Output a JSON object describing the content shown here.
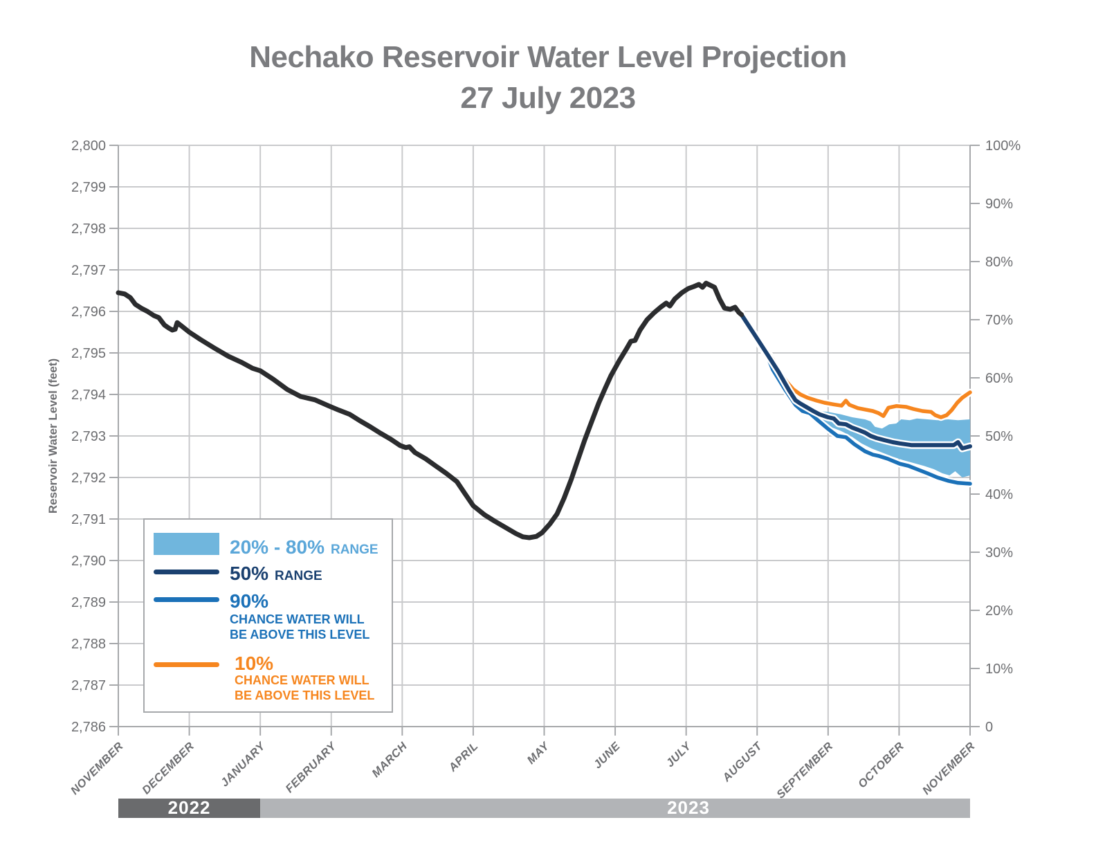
{
  "title": {
    "line1": "Nechako Reservoir Water Level Projection",
    "line2": "27 July 2023"
  },
  "y_axis": {
    "title": "Reservoir Water Level (feet)",
    "tick_labels": [
      "2,786",
      "2,787",
      "2,788",
      "2,789",
      "2,790",
      "2,791",
      "2,792",
      "2,793",
      "2,794",
      "2,795",
      "2,796",
      "2,797",
      "2,798",
      "2,799",
      "2,800"
    ]
  },
  "right_axis": {
    "tick_labels": [
      "0",
      "10%",
      "20%",
      "30%",
      "40%",
      "50%",
      "60%",
      "70%",
      "80%",
      "90%",
      "100%"
    ]
  },
  "x_axis": {
    "months": [
      "NOVEMBER",
      "DECEMBER",
      "JANUARY",
      "FEBRUARY",
      "MARCH",
      "APRIL",
      "MAY",
      "JUNE",
      "JULY",
      "AUGUST",
      "SEPTEMBER",
      "OCTOBER",
      "NOVEMBER"
    ]
  },
  "year_bar": {
    "left_label": "2022",
    "right_label": "2023"
  },
  "legend": {
    "band": {
      "big": "20% - 80%",
      "small": "RANGE"
    },
    "p50": {
      "big": "50%",
      "small": "RANGE"
    },
    "p90": {
      "big": "90%",
      "line1": "CHANCE WATER WILL",
      "line2": "BE ABOVE THIS LEVEL"
    },
    "p10": {
      "big": "10%",
      "line1": "CHANCE WATER WILL",
      "line2": "BE ABOVE THIS LEVEL"
    }
  },
  "colors": {
    "historical": "#2B2C2E",
    "p50": "#1B4170",
    "p90": "#1B71B8",
    "p10": "#F6861F",
    "band": "#70B6DD",
    "band_text": "#5BA7D9",
    "grid": "#C9CACC",
    "axis": "#A6A8AB",
    "text": "#6D6E71",
    "title": "#7B7C7F",
    "year2022_bg": "#6A6B6D",
    "year2023_bg": "#B2B4B7"
  },
  "chart_data": {
    "type": "line",
    "title": "Nechako Reservoir Water Level Projection",
    "subtitle": "27 July 2023",
    "x_unit": "months since 1 November 2022 (0 = Nov 1 2022, 12 = Nov 1 2023)",
    "x_tick_labels": [
      "NOVEMBER",
      "DECEMBER",
      "JANUARY",
      "FEBRUARY",
      "MARCH",
      "APRIL",
      "MAY",
      "JUNE",
      "JULY",
      "AUGUST",
      "SEPTEMBER",
      "OCTOBER",
      "NOVEMBER"
    ],
    "ylabel": "Reservoir Water Level (feet)",
    "ylim": [
      2786,
      2800
    ],
    "y2lim_percent": [
      0,
      100
    ],
    "grid": true,
    "legend_position": "lower-left",
    "forecast_start_month": 8.78,
    "series": [
      {
        "name": "historical",
        "color": "historical",
        "width": 7,
        "points": [
          [
            0,
            2796.45
          ],
          [
            0.09,
            2796.42
          ],
          [
            0.17,
            2796.33
          ],
          [
            0.24,
            2796.17
          ],
          [
            0.33,
            2796.07
          ],
          [
            0.41,
            2796.0
          ],
          [
            0.5,
            2795.9
          ],
          [
            0.57,
            2795.85
          ],
          [
            0.65,
            2795.67
          ],
          [
            0.71,
            2795.6
          ],
          [
            0.76,
            2795.55
          ],
          [
            0.8,
            2795.57
          ],
          [
            0.83,
            2795.73
          ],
          [
            0.89,
            2795.65
          ],
          [
            1.0,
            2795.5
          ],
          [
            1.16,
            2795.32
          ],
          [
            1.35,
            2795.12
          ],
          [
            1.55,
            2794.92
          ],
          [
            1.74,
            2794.77
          ],
          [
            1.89,
            2794.63
          ],
          [
            2.0,
            2794.57
          ],
          [
            2.18,
            2794.37
          ],
          [
            2.38,
            2794.12
          ],
          [
            2.57,
            2793.95
          ],
          [
            2.77,
            2793.87
          ],
          [
            2.97,
            2793.72
          ],
          [
            3.11,
            2793.62
          ],
          [
            3.26,
            2793.52
          ],
          [
            3.4,
            2793.37
          ],
          [
            3.55,
            2793.22
          ],
          [
            3.69,
            2793.07
          ],
          [
            3.84,
            2792.92
          ],
          [
            3.97,
            2792.77
          ],
          [
            4.05,
            2792.72
          ],
          [
            4.1,
            2792.74
          ],
          [
            4.18,
            2792.6
          ],
          [
            4.33,
            2792.45
          ],
          [
            4.47,
            2792.28
          ],
          [
            4.62,
            2792.1
          ],
          [
            4.77,
            2791.9
          ],
          [
            4.88,
            2791.62
          ],
          [
            5.0,
            2791.32
          ],
          [
            5.16,
            2791.1
          ],
          [
            5.3,
            2790.95
          ],
          [
            5.45,
            2790.8
          ],
          [
            5.6,
            2790.65
          ],
          [
            5.7,
            2790.57
          ],
          [
            5.79,
            2790.55
          ],
          [
            5.89,
            2790.58
          ],
          [
            5.97,
            2790.67
          ],
          [
            6.08,
            2790.88
          ],
          [
            6.18,
            2791.12
          ],
          [
            6.28,
            2791.5
          ],
          [
            6.38,
            2791.95
          ],
          [
            6.47,
            2792.4
          ],
          [
            6.57,
            2792.9
          ],
          [
            6.67,
            2793.35
          ],
          [
            6.77,
            2793.8
          ],
          [
            6.86,
            2794.15
          ],
          [
            6.94,
            2794.45
          ],
          [
            7.06,
            2794.82
          ],
          [
            7.16,
            2795.1
          ],
          [
            7.22,
            2795.28
          ],
          [
            7.28,
            2795.3
          ],
          [
            7.35,
            2795.55
          ],
          [
            7.45,
            2795.8
          ],
          [
            7.55,
            2795.97
          ],
          [
            7.64,
            2796.1
          ],
          [
            7.72,
            2796.2
          ],
          [
            7.77,
            2796.13
          ],
          [
            7.84,
            2796.3
          ],
          [
            7.94,
            2796.45
          ],
          [
            8.03,
            2796.55
          ],
          [
            8.11,
            2796.6
          ],
          [
            8.18,
            2796.65
          ],
          [
            8.23,
            2796.58
          ],
          [
            8.28,
            2796.68
          ],
          [
            8.34,
            2796.63
          ],
          [
            8.4,
            2796.58
          ],
          [
            8.47,
            2796.3
          ],
          [
            8.54,
            2796.08
          ],
          [
            8.62,
            2796.05
          ],
          [
            8.69,
            2796.1
          ],
          [
            8.74,
            2795.98
          ],
          [
            8.78,
            2795.92
          ]
        ]
      },
      {
        "name": "10% chance water will be above this level",
        "color": "p10",
        "width": 5.5,
        "casing": true,
        "points": [
          [
            8.78,
            2795.95
          ],
          [
            8.91,
            2795.6
          ],
          [
            9.01,
            2795.35
          ],
          [
            9.11,
            2795.1
          ],
          [
            9.22,
            2794.85
          ],
          [
            9.32,
            2794.55
          ],
          [
            9.42,
            2794.3
          ],
          [
            9.51,
            2794.12
          ],
          [
            9.61,
            2794.0
          ],
          [
            9.71,
            2793.92
          ],
          [
            9.84,
            2793.85
          ],
          [
            9.95,
            2793.8
          ],
          [
            10.08,
            2793.76
          ],
          [
            10.19,
            2793.73
          ],
          [
            10.25,
            2793.85
          ],
          [
            10.3,
            2793.75
          ],
          [
            10.42,
            2793.67
          ],
          [
            10.54,
            2793.63
          ],
          [
            10.63,
            2793.6
          ],
          [
            10.71,
            2793.55
          ],
          [
            10.78,
            2793.48
          ],
          [
            10.85,
            2793.68
          ],
          [
            10.96,
            2793.72
          ],
          [
            11.1,
            2793.7
          ],
          [
            11.2,
            2793.65
          ],
          [
            11.33,
            2793.6
          ],
          [
            11.45,
            2793.58
          ],
          [
            11.51,
            2793.5
          ],
          [
            11.59,
            2793.45
          ],
          [
            11.67,
            2793.5
          ],
          [
            11.74,
            2793.62
          ],
          [
            11.82,
            2793.8
          ],
          [
            11.89,
            2793.92
          ],
          [
            12.0,
            2794.05
          ]
        ]
      },
      {
        "name": "90% chance water will be above this level",
        "color": "p90",
        "width": 5.5,
        "casing": true,
        "points": [
          [
            8.78,
            2795.92
          ],
          [
            8.96,
            2795.4
          ],
          [
            9.15,
            2794.9
          ],
          [
            9.22,
            2794.6
          ],
          [
            9.4,
            2794.1
          ],
          [
            9.54,
            2793.75
          ],
          [
            9.64,
            2793.6
          ],
          [
            9.74,
            2793.55
          ],
          [
            9.84,
            2793.4
          ],
          [
            10.0,
            2793.17
          ],
          [
            10.13,
            2793.0
          ],
          [
            10.25,
            2792.97
          ],
          [
            10.37,
            2792.8
          ],
          [
            10.52,
            2792.63
          ],
          [
            10.63,
            2792.55
          ],
          [
            10.71,
            2792.52
          ],
          [
            10.84,
            2792.45
          ],
          [
            11.01,
            2792.33
          ],
          [
            11.13,
            2792.28
          ],
          [
            11.25,
            2792.2
          ],
          [
            11.4,
            2792.1
          ],
          [
            11.54,
            2792.0
          ],
          [
            11.69,
            2791.92
          ],
          [
            11.83,
            2791.87
          ],
          [
            12.0,
            2791.85
          ]
        ]
      },
      {
        "name": "50% range",
        "color": "p50",
        "width": 6,
        "casing": true,
        "points": [
          [
            8.78,
            2795.92
          ],
          [
            8.96,
            2795.45
          ],
          [
            9.15,
            2794.95
          ],
          [
            9.3,
            2794.55
          ],
          [
            9.45,
            2794.1
          ],
          [
            9.54,
            2793.86
          ],
          [
            9.61,
            2793.78
          ],
          [
            9.69,
            2793.7
          ],
          [
            9.79,
            2793.6
          ],
          [
            9.88,
            2793.52
          ],
          [
            10.0,
            2793.45
          ],
          [
            10.08,
            2793.42
          ],
          [
            10.15,
            2793.3
          ],
          [
            10.25,
            2793.28
          ],
          [
            10.34,
            2793.2
          ],
          [
            10.42,
            2793.15
          ],
          [
            10.52,
            2793.08
          ],
          [
            10.6,
            2793.0
          ],
          [
            10.68,
            2792.95
          ],
          [
            10.79,
            2792.9
          ],
          [
            10.91,
            2792.85
          ],
          [
            11.01,
            2792.82
          ],
          [
            11.17,
            2792.78
          ],
          [
            11.77,
            2792.78
          ],
          [
            11.83,
            2792.85
          ],
          [
            11.89,
            2792.7
          ],
          [
            12.0,
            2792.75
          ]
        ]
      }
    ],
    "band_20_80": {
      "top": [
        [
          9.5,
          2793.95
        ],
        [
          9.64,
          2793.75
        ],
        [
          9.74,
          2793.65
        ],
        [
          9.88,
          2793.6
        ],
        [
          10.0,
          2793.58
        ],
        [
          10.18,
          2793.52
        ],
        [
          10.34,
          2793.45
        ],
        [
          10.52,
          2793.4
        ],
        [
          10.6,
          2793.35
        ],
        [
          10.66,
          2793.22
        ],
        [
          10.76,
          2793.18
        ],
        [
          10.86,
          2793.28
        ],
        [
          10.96,
          2793.3
        ],
        [
          11.03,
          2793.4
        ],
        [
          11.15,
          2793.38
        ],
        [
          11.25,
          2793.42
        ],
        [
          11.4,
          2793.4
        ],
        [
          11.54,
          2793.38
        ],
        [
          11.69,
          2793.4
        ],
        [
          11.83,
          2793.38
        ],
        [
          12.0,
          2793.4
        ]
      ],
      "bottom": [
        [
          9.5,
          2793.85
        ],
        [
          9.64,
          2793.62
        ],
        [
          9.74,
          2793.5
        ],
        [
          9.88,
          2793.35
        ],
        [
          10.03,
          2793.22
        ],
        [
          10.18,
          2793.12
        ],
        [
          10.32,
          2793.0
        ],
        [
          10.47,
          2792.82
        ],
        [
          10.61,
          2792.7
        ],
        [
          10.76,
          2792.6
        ],
        [
          10.91,
          2792.5
        ],
        [
          11.05,
          2792.42
        ],
        [
          11.2,
          2792.35
        ],
        [
          11.35,
          2792.28
        ],
        [
          11.49,
          2792.2
        ],
        [
          11.61,
          2792.1
        ],
        [
          11.71,
          2792.05
        ],
        [
          11.79,
          2792.15
        ],
        [
          11.89,
          2792.0
        ],
        [
          12.0,
          2792.05
        ]
      ]
    }
  }
}
